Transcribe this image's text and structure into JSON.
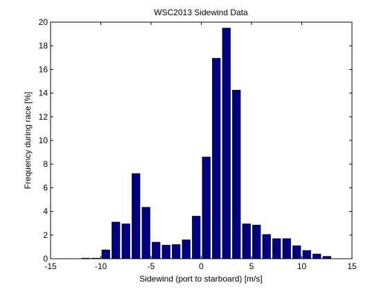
{
  "chart_data": {
    "type": "bar",
    "title": "WSC2013 Sidewind Data",
    "xlabel": "Sidewind (port to starboard) [m/s]",
    "ylabel": "Frequency during race [%]",
    "xlim": [
      -15,
      15
    ],
    "ylim": [
      0,
      20
    ],
    "xticks": [
      -15,
      -10,
      -5,
      0,
      5,
      10,
      15
    ],
    "yticks": [
      0,
      2,
      4,
      6,
      8,
      10,
      12,
      14,
      16,
      18,
      20
    ],
    "bar_width": 0.8,
    "grid": false,
    "bar_color": "#000080",
    "bar_edge_color": "#000000",
    "x": [
      -11.5,
      -10.5,
      -9.5,
      -8.5,
      -7.5,
      -6.5,
      -5.5,
      -4.5,
      -3.5,
      -2.5,
      -1.5,
      -0.5,
      0.5,
      1.5,
      2.5,
      3.5,
      4.5,
      5.5,
      6.5,
      7.5,
      8.5,
      9.5,
      10.5,
      11.5,
      12.5
    ],
    "values": [
      0.05,
      0.05,
      0.75,
      3.1,
      2.95,
      7.2,
      4.35,
      1.4,
      1.15,
      1.2,
      1.6,
      3.6,
      8.6,
      16.95,
      19.5,
      14.25,
      2.95,
      2.85,
      2.05,
      1.7,
      1.7,
      1.1,
      0.7,
      0.4,
      0.2
    ]
  }
}
